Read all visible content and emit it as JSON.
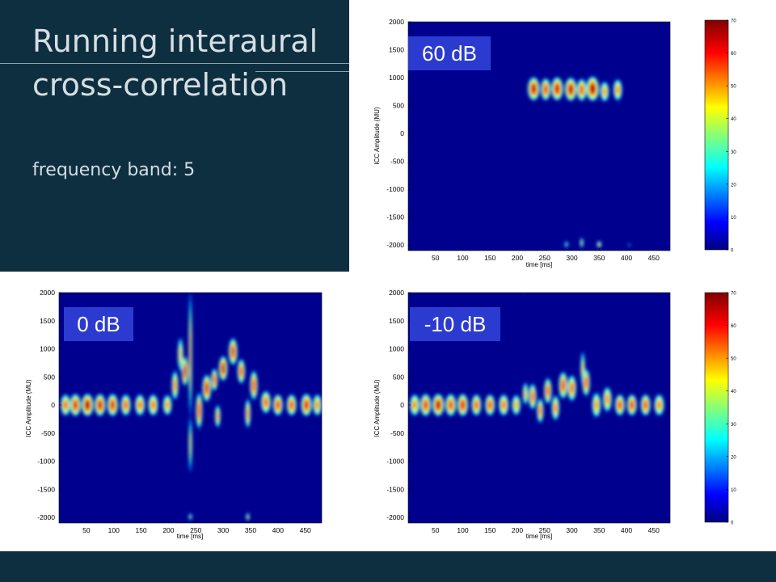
{
  "slide": {
    "title_line1": "Running interaural",
    "title_line2": "cross-correlation",
    "subtitle": "frequency band: 5",
    "panel_color": "#0d2f40"
  },
  "chart_data": [
    {
      "type": "heatmap",
      "id": "60dB",
      "label": "60 dB",
      "xlabel": "time [ms]",
      "ylabel": "ICC Amplitude (MU)",
      "xticks": [
        50,
        100,
        150,
        200,
        250,
        300,
        350,
        400,
        450
      ],
      "yticks": [
        2000,
        1500,
        1000,
        500,
        0,
        -500,
        -1000,
        -1500,
        -2000
      ],
      "xlim": [
        0,
        480
      ],
      "ylim": [
        -2100,
        2000
      ],
      "colorbar": {
        "ticks": [
          70,
          60,
          50,
          40,
          30,
          20,
          10,
          0
        ],
        "range": [
          0,
          70
        ],
        "colormap": "jet"
      },
      "blobs": [
        {
          "t": 230,
          "a": 800,
          "w": 11,
          "h": 210,
          "v": 66
        },
        {
          "t": 252,
          "a": 790,
          "w": 9,
          "h": 200,
          "v": 60
        },
        {
          "t": 273,
          "a": 800,
          "w": 11,
          "h": 210,
          "v": 64
        },
        {
          "t": 298,
          "a": 790,
          "w": 11,
          "h": 210,
          "v": 66
        },
        {
          "t": 318,
          "a": 780,
          "w": 9,
          "h": 200,
          "v": 58
        },
        {
          "t": 338,
          "a": 800,
          "w": 12,
          "h": 220,
          "v": 68
        },
        {
          "t": 360,
          "a": 750,
          "w": 8,
          "h": 180,
          "v": 50
        },
        {
          "t": 384,
          "a": 780,
          "w": 8,
          "h": 190,
          "v": 52
        },
        {
          "t": 290,
          "a": -1990,
          "w": 3,
          "h": 60,
          "v": 30
        },
        {
          "t": 318,
          "a": -1960,
          "w": 3,
          "h": 90,
          "v": 38
        },
        {
          "t": 350,
          "a": -1990,
          "w": 4,
          "h": 60,
          "v": 45
        },
        {
          "t": 405,
          "a": -2000,
          "w": 2,
          "h": 30,
          "v": 18
        }
      ]
    },
    {
      "type": "heatmap",
      "id": "0dB",
      "label": "0 dB",
      "xlabel": "time [ms]",
      "ylabel": "ICC Amplitude (MU)",
      "xticks": [
        50,
        100,
        150,
        200,
        250,
        300,
        350,
        400,
        450
      ],
      "yticks": [
        2000,
        1500,
        1000,
        500,
        0,
        -500,
        -1000,
        -1500,
        -2000
      ],
      "xlim": [
        0,
        480
      ],
      "ylim": [
        -2100,
        2000
      ],
      "blobs": [
        {
          "t": 12,
          "a": 0,
          "w": 9,
          "h": 190,
          "v": 55
        },
        {
          "t": 30,
          "a": 0,
          "w": 10,
          "h": 200,
          "v": 62
        },
        {
          "t": 52,
          "a": 0,
          "w": 11,
          "h": 200,
          "v": 68
        },
        {
          "t": 75,
          "a": 0,
          "w": 10,
          "h": 200,
          "v": 64
        },
        {
          "t": 98,
          "a": 0,
          "w": 10,
          "h": 200,
          "v": 62
        },
        {
          "t": 122,
          "a": 0,
          "w": 9,
          "h": 190,
          "v": 56
        },
        {
          "t": 148,
          "a": 0,
          "w": 9,
          "h": 190,
          "v": 54
        },
        {
          "t": 172,
          "a": 0,
          "w": 9,
          "h": 190,
          "v": 54
        },
        {
          "t": 198,
          "a": 0,
          "w": 8,
          "h": 180,
          "v": 50
        },
        {
          "t": 212,
          "a": 350,
          "w": 6,
          "h": 260,
          "v": 52
        },
        {
          "t": 222,
          "a": 900,
          "w": 5,
          "h": 300,
          "v": 45
        },
        {
          "t": 230,
          "a": 600,
          "w": 6,
          "h": 260,
          "v": 66
        },
        {
          "t": 240,
          "a": 900,
          "w": 3,
          "h": 1100,
          "v": 48
        },
        {
          "t": 240,
          "a": -700,
          "w": 3,
          "h": 500,
          "v": 40
        },
        {
          "t": 256,
          "a": -100,
          "w": 6,
          "h": 320,
          "v": 60
        },
        {
          "t": 270,
          "a": 300,
          "w": 8,
          "h": 240,
          "v": 64
        },
        {
          "t": 284,
          "a": 450,
          "w": 6,
          "h": 200,
          "v": 58
        },
        {
          "t": 290,
          "a": -200,
          "w": 5,
          "h": 200,
          "v": 50
        },
        {
          "t": 300,
          "a": 650,
          "w": 8,
          "h": 220,
          "v": 66
        },
        {
          "t": 318,
          "a": 950,
          "w": 8,
          "h": 240,
          "v": 62
        },
        {
          "t": 333,
          "a": 600,
          "w": 7,
          "h": 220,
          "v": 58
        },
        {
          "t": 345,
          "a": -150,
          "w": 5,
          "h": 260,
          "v": 52
        },
        {
          "t": 356,
          "a": 350,
          "w": 7,
          "h": 260,
          "v": 60
        },
        {
          "t": 378,
          "a": 50,
          "w": 9,
          "h": 200,
          "v": 56
        },
        {
          "t": 400,
          "a": 0,
          "w": 9,
          "h": 190,
          "v": 60
        },
        {
          "t": 425,
          "a": 0,
          "w": 9,
          "h": 190,
          "v": 58
        },
        {
          "t": 452,
          "a": 0,
          "w": 10,
          "h": 200,
          "v": 62
        },
        {
          "t": 472,
          "a": 0,
          "w": 8,
          "h": 190,
          "v": 52
        },
        {
          "t": 240,
          "a": -1990,
          "w": 3,
          "h": 60,
          "v": 35
        },
        {
          "t": 345,
          "a": -1990,
          "w": 3,
          "h": 70,
          "v": 40
        }
      ]
    },
    {
      "type": "heatmap",
      "id": "minus10dB",
      "label": "-10 dB",
      "xlabel": "time [ms]",
      "ylabel": "ICC Amplitude (MU)",
      "xticks": [
        50,
        100,
        150,
        200,
        250,
        300,
        350,
        400,
        450
      ],
      "yticks": [
        2000,
        1500,
        1000,
        500,
        0,
        -500,
        -1000,
        -1500,
        -2000
      ],
      "xlim": [
        0,
        480
      ],
      "ylim": [
        -2100,
        2000
      ],
      "colorbar": {
        "ticks": [
          70,
          60,
          50,
          40,
          30,
          20,
          10,
          0
        ],
        "range": [
          0,
          70
        ],
        "colormap": "jet"
      },
      "blobs": [
        {
          "t": 12,
          "a": 0,
          "w": 9,
          "h": 190,
          "v": 52
        },
        {
          "t": 32,
          "a": 0,
          "w": 10,
          "h": 200,
          "v": 60
        },
        {
          "t": 55,
          "a": 0,
          "w": 11,
          "h": 200,
          "v": 66
        },
        {
          "t": 78,
          "a": 0,
          "w": 10,
          "h": 200,
          "v": 58
        },
        {
          "t": 100,
          "a": 0,
          "w": 10,
          "h": 200,
          "v": 62
        },
        {
          "t": 125,
          "a": 0,
          "w": 9,
          "h": 190,
          "v": 56
        },
        {
          "t": 150,
          "a": 0,
          "w": 9,
          "h": 190,
          "v": 58
        },
        {
          "t": 175,
          "a": 0,
          "w": 9,
          "h": 190,
          "v": 54
        },
        {
          "t": 198,
          "a": 0,
          "w": 8,
          "h": 180,
          "v": 48
        },
        {
          "t": 215,
          "a": 200,
          "w": 5,
          "h": 200,
          "v": 45
        },
        {
          "t": 228,
          "a": 150,
          "w": 7,
          "h": 230,
          "v": 56
        },
        {
          "t": 242,
          "a": -100,
          "w": 6,
          "h": 220,
          "v": 54
        },
        {
          "t": 256,
          "a": 250,
          "w": 7,
          "h": 230,
          "v": 58
        },
        {
          "t": 270,
          "a": -50,
          "w": 7,
          "h": 220,
          "v": 52
        },
        {
          "t": 284,
          "a": 350,
          "w": 8,
          "h": 240,
          "v": 60
        },
        {
          "t": 300,
          "a": 300,
          "w": 8,
          "h": 230,
          "v": 56
        },
        {
          "t": 320,
          "a": 650,
          "w": 4,
          "h": 300,
          "v": 42
        },
        {
          "t": 326,
          "a": 400,
          "w": 7,
          "h": 240,
          "v": 58
        },
        {
          "t": 345,
          "a": 0,
          "w": 8,
          "h": 220,
          "v": 50
        },
        {
          "t": 365,
          "a": 100,
          "w": 8,
          "h": 220,
          "v": 52
        },
        {
          "t": 388,
          "a": 0,
          "w": 9,
          "h": 190,
          "v": 58
        },
        {
          "t": 410,
          "a": 0,
          "w": 9,
          "h": 190,
          "v": 60
        },
        {
          "t": 435,
          "a": 0,
          "w": 9,
          "h": 190,
          "v": 58
        },
        {
          "t": 460,
          "a": 0,
          "w": 9,
          "h": 190,
          "v": 52
        },
        {
          "t": 212,
          "a": 2050,
          "w": 2,
          "h": 40,
          "v": 25
        }
      ]
    }
  ]
}
